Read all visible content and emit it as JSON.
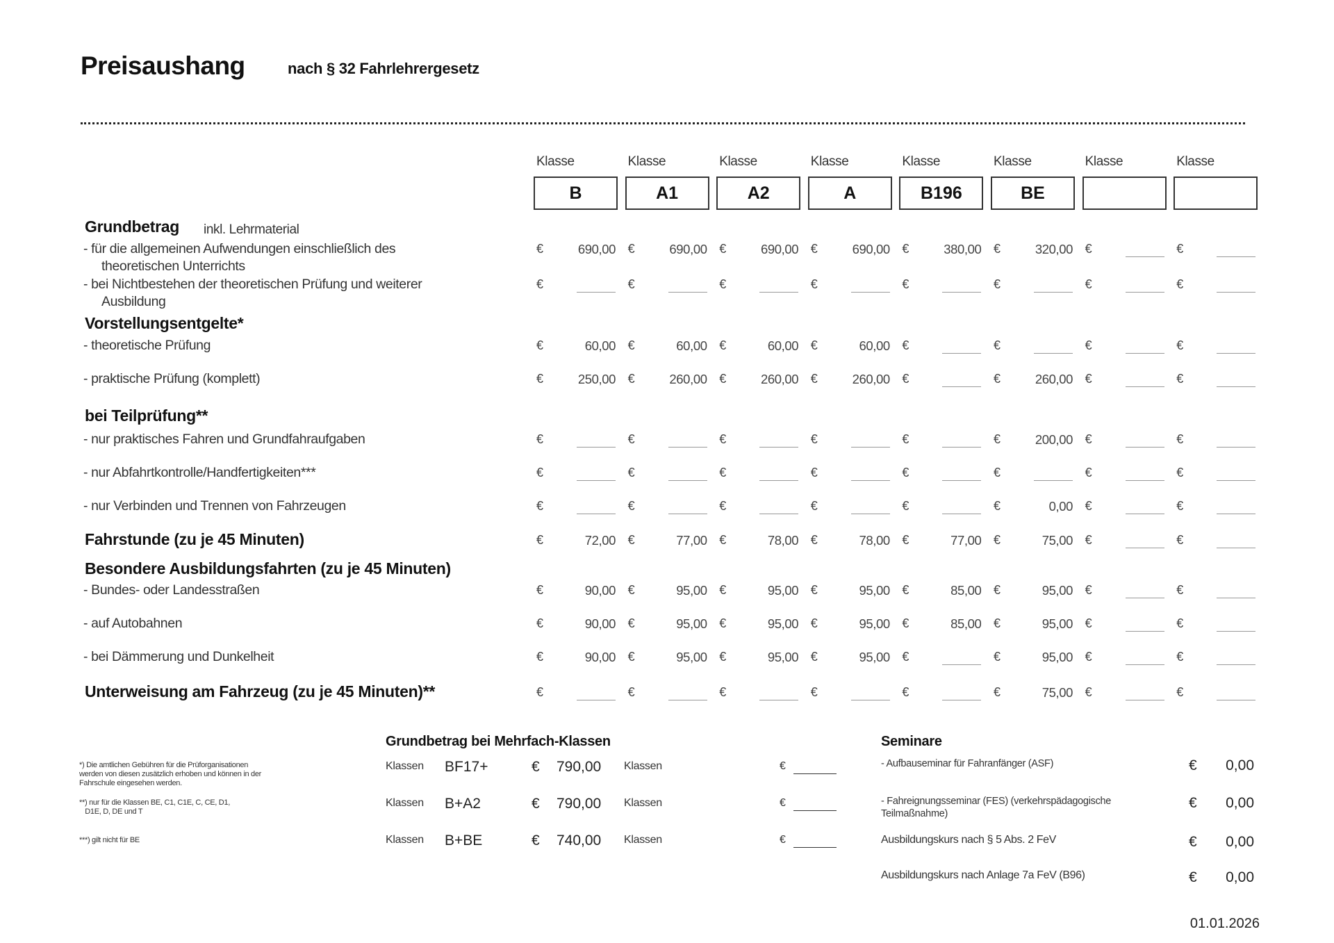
{
  "header": {
    "title": "Preisaushang",
    "subtitle": "nach § 32 Fahrlehrergesetz"
  },
  "class_label": "Klasse",
  "currency": "€",
  "classes": [
    "B",
    "A1",
    "A2",
    "A",
    "B196",
    "BE",
    "",
    ""
  ],
  "sections": {
    "grundbetrag": {
      "title": "Grundbetrag",
      "note": "inkl. Lehrmaterial"
    },
    "vorstellung": {
      "title": "Vorstellungsentgelte*"
    },
    "teilpruefung": {
      "title": "bei Teilprüfung**"
    },
    "besondere": {
      "title": "Besondere Ausbildungsfahrten (zu je 45 Minuten)"
    }
  },
  "rows": [
    {
      "label": "-  für die allgemeinen Aufwendungen einschließlich des",
      "label2": "theoretischen Unterrichts",
      "bold": false,
      "values": [
        "690,00",
        "690,00",
        "690,00",
        "690,00",
        "380,00",
        "320,00",
        "",
        ""
      ]
    },
    {
      "label": "-  bei Nichtbestehen der theoretischen Prüfung und weiterer",
      "label2": "Ausbildung",
      "bold": false,
      "values": [
        "",
        "",
        "",
        "",
        "",
        "",
        "",
        ""
      ]
    },
    {
      "label": "-  theoretische Prüfung",
      "bold": false,
      "values": [
        "60,00",
        "60,00",
        "60,00",
        "60,00",
        "",
        "",
        "",
        ""
      ]
    },
    {
      "label": "-  praktische Prüfung (komplett)",
      "bold": false,
      "values": [
        "250,00",
        "260,00",
        "260,00",
        "260,00",
        "",
        "260,00",
        "",
        ""
      ]
    },
    {
      "label": "-  nur praktisches Fahren und Grundfahraufgaben",
      "bold": false,
      "values": [
        "",
        "",
        "",
        "",
        "",
        "200,00",
        "",
        ""
      ]
    },
    {
      "label": "-  nur Abfahrtkontrolle/Handfertigkeiten***",
      "bold": false,
      "values": [
        "",
        "",
        "",
        "",
        "",
        "",
        "",
        ""
      ]
    },
    {
      "label": "-  nur Verbinden und Trennen von Fahrzeugen",
      "bold": false,
      "values": [
        "",
        "",
        "",
        "",
        "",
        "0,00",
        "",
        ""
      ]
    },
    {
      "label": "Fahrstunde (zu je 45 Minuten)",
      "bold": true,
      "values": [
        "72,00",
        "77,00",
        "78,00",
        "78,00",
        "77,00",
        "75,00",
        "",
        ""
      ]
    },
    {
      "label": "-  Bundes- oder Landesstraßen",
      "bold": false,
      "values": [
        "90,00",
        "95,00",
        "95,00",
        "95,00",
        "85,00",
        "95,00",
        "",
        ""
      ]
    },
    {
      "label": "-  auf Autobahnen",
      "bold": false,
      "values": [
        "90,00",
        "95,00",
        "95,00",
        "95,00",
        "85,00",
        "95,00",
        "",
        ""
      ]
    },
    {
      "label": "-  bei Dämmerung und Dunkelheit",
      "bold": false,
      "values": [
        "90,00",
        "95,00",
        "95,00",
        "95,00",
        "",
        "95,00",
        "",
        ""
      ]
    },
    {
      "label": "Unterweisung am Fahrzeug (zu je 45 Minuten)**",
      "bold": true,
      "values": [
        "",
        "",
        "",
        "",
        "",
        "75,00",
        "",
        ""
      ]
    }
  ],
  "footnotes": [
    "*) Die amtlichen Gebühren für die Prüforganisationen\nwerden von diesen zusätzlich erhoben und können in der\nFahrschule eingesehen werden.",
    "**) nur für die Klassen BE, C1, C1E, C, CE, D1,\n   D1E, D, DE und T",
    "***) gilt nicht für BE"
  ],
  "multi_class": {
    "title": "Grundbetrag bei Mehrfach-Klassen",
    "label": "Klassen",
    "rows": [
      {
        "code": "BF17+",
        "value": "790,00",
        "value2": ""
      },
      {
        "code": "B+A2",
        "value": "790,00",
        "value2": ""
      },
      {
        "code": "B+BE",
        "value": "740,00",
        "value2": ""
      }
    ]
  },
  "seminare": {
    "title": "Seminare",
    "items": [
      {
        "label": "- Aufbauseminar für Fahranfänger (ASF)",
        "value": "0,00",
        "small": true
      },
      {
        "label": "- Fahreignungsseminar (FES) (verkehrspädagogische\nTeilmaßnahme)",
        "value": "0,00",
        "small": true
      },
      {
        "label": "Ausbildungskurs nach § 5 Abs. 2 FeV",
        "value": "0,00",
        "small": false
      },
      {
        "label": "Ausbildungskurs nach Anlage 7a FeV (B96)",
        "value": "0,00",
        "small": false
      }
    ]
  },
  "date": "01.01.2026"
}
